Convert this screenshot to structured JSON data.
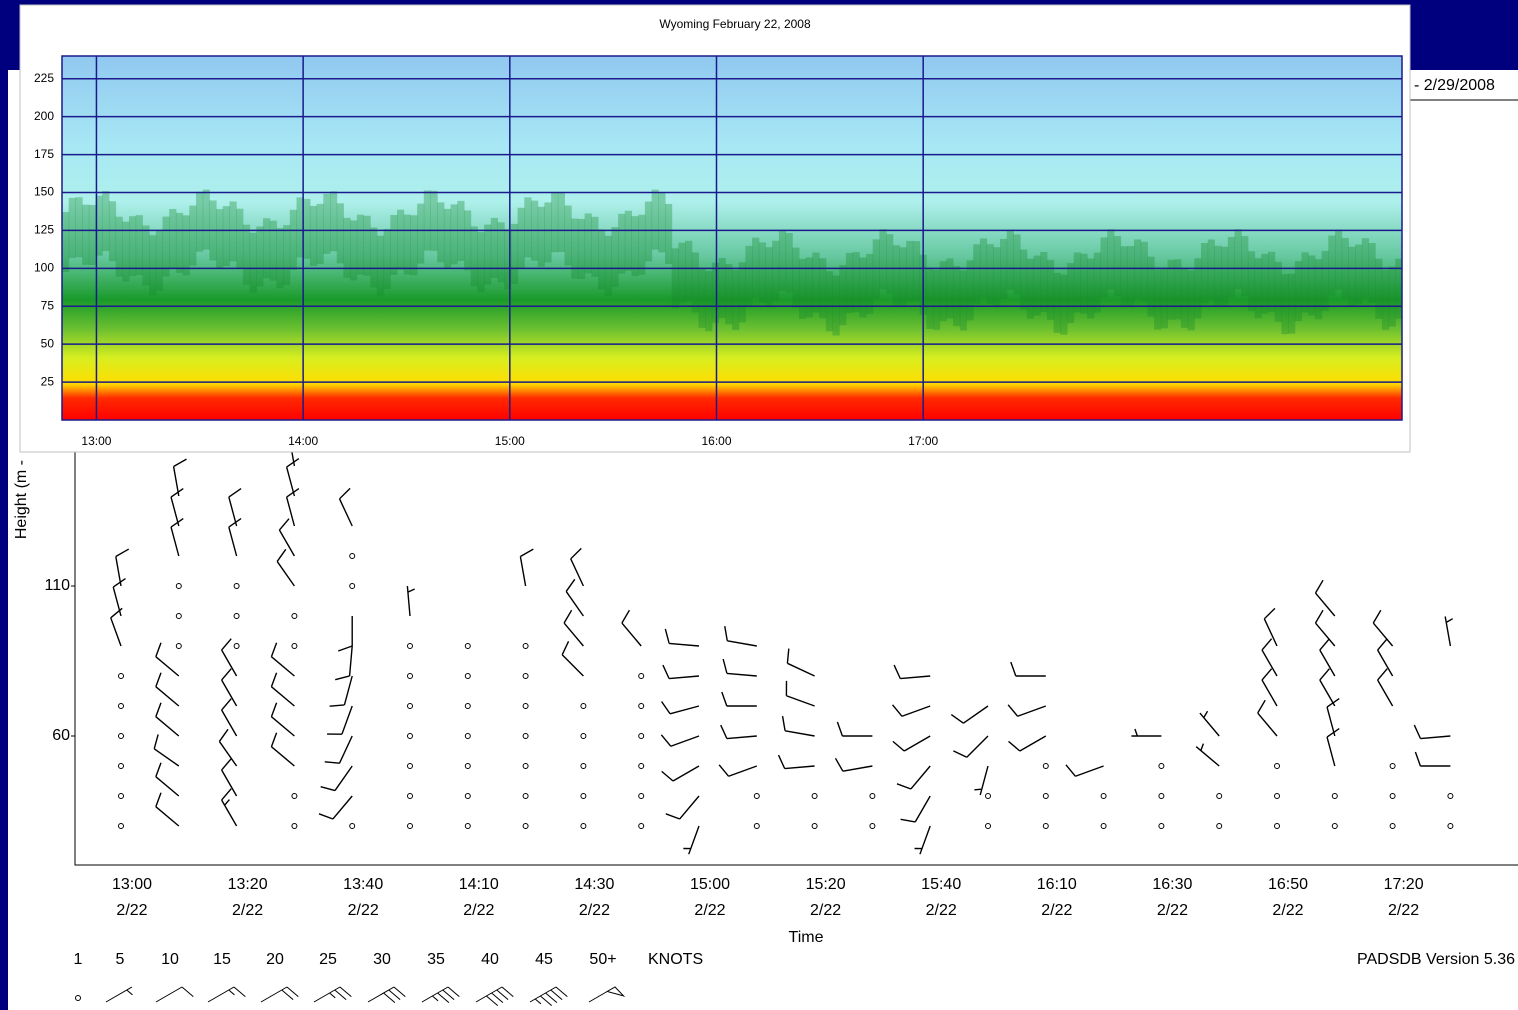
{
  "chart_data": [
    {
      "type": "heatmap",
      "title": "Wyoming February 22, 2008",
      "xlim": [
        770,
        1159
      ],
      "xticks": [
        {
          "value": 780,
          "label": "13:00"
        },
        {
          "value": 840,
          "label": "14:00"
        },
        {
          "value": 900,
          "label": "15:00"
        },
        {
          "value": 960,
          "label": "16:00"
        },
        {
          "value": 1020,
          "label": "17:00"
        }
      ],
      "ylim": [
        0,
        240
      ],
      "yticks": [
        25,
        50,
        75,
        100,
        125,
        150,
        175,
        200,
        225
      ],
      "grid": true,
      "grid_color": "#1a1a8c"
    },
    {
      "type": "barb",
      "x_label": "Time",
      "y_label": "Height (m -",
      "date_range_fragment": "- 2/29/2008",
      "footer": "PADSDB Version 5.36",
      "ylim": [
        17,
        272
      ],
      "yticks": [
        60,
        110
      ],
      "categories": [
        "13:00",
        null,
        "13:20",
        null,
        "13:40",
        null,
        "14:10",
        null,
        "14:30",
        null,
        "15:00",
        null,
        "15:20",
        null,
        "15:40",
        null,
        "16:10",
        null,
        "16:30",
        null,
        "16:50",
        null,
        "17:20",
        null
      ],
      "category_dates": [
        "2/22",
        null,
        "2/22",
        null,
        "2/22",
        null,
        "2/22",
        null,
        "2/22",
        null,
        "2/22",
        null,
        "2/22",
        null,
        "2/22",
        null,
        "2/22",
        null,
        "2/22",
        null,
        "2/22",
        null,
        "2/22",
        null
      ],
      "levels": [
        30,
        40,
        50,
        60,
        70,
        80,
        90,
        100,
        110,
        120,
        130,
        140,
        150
      ],
      "color": "#000000",
      "columns": [
        {
          "speeds": [
            0,
            0,
            0,
            0,
            0,
            0,
            10,
            10,
            10,
            null,
            null,
            null,
            null
          ],
          "directions": [
            null,
            null,
            null,
            null,
            null,
            null,
            340,
            345,
            350,
            null,
            null,
            null,
            null
          ]
        },
        {
          "speeds": [
            10,
            10,
            10,
            10,
            10,
            10,
            0,
            0,
            0,
            10,
            10,
            10,
            null
          ],
          "directions": [
            310,
            310,
            305,
            310,
            310,
            310,
            null,
            null,
            null,
            345,
            345,
            350,
            null
          ]
        },
        {
          "speeds": [
            15,
            10,
            10,
            10,
            10,
            10,
            0,
            0,
            0,
            10,
            10,
            null,
            null
          ],
          "directions": [
            330,
            330,
            325,
            330,
            330,
            330,
            null,
            null,
            null,
            345,
            345,
            null,
            null
          ]
        },
        {
          "speeds": [
            0,
            0,
            10,
            10,
            10,
            10,
            0,
            0,
            10,
            10,
            10,
            10,
            10
          ],
          "directions": [
            null,
            null,
            310,
            310,
            310,
            310,
            null,
            null,
            325,
            330,
            345,
            345,
            350
          ]
        },
        {
          "speeds": [
            0,
            10,
            10,
            10,
            10,
            10,
            10,
            10,
            0,
            0,
            10,
            null,
            null
          ],
          "directions": [
            null,
            220,
            215,
            205,
            200,
            195,
            185,
            180,
            null,
            null,
            335,
            null,
            null
          ]
        },
        {
          "speeds": [
            0,
            0,
            0,
            0,
            0,
            0,
            0,
            5,
            null,
            null,
            null,
            null,
            null
          ],
          "directions": [
            null,
            null,
            null,
            null,
            null,
            null,
            null,
            355,
            null,
            null,
            null,
            null,
            null
          ]
        },
        {
          "speeds": [
            0,
            0,
            0,
            0,
            0,
            0,
            0,
            null,
            null,
            null,
            null,
            null,
            null
          ],
          "directions": [
            null,
            null,
            null,
            null,
            null,
            null,
            null,
            null,
            null,
            null,
            null,
            null,
            null
          ]
        },
        {
          "speeds": [
            0,
            0,
            0,
            0,
            0,
            0,
            0,
            null,
            10,
            null,
            null,
            null,
            null
          ],
          "directions": [
            null,
            null,
            null,
            null,
            null,
            null,
            null,
            null,
            350,
            null,
            null,
            null,
            null
          ]
        },
        {
          "speeds": [
            0,
            0,
            0,
            0,
            0,
            10,
            10,
            10,
            10,
            null,
            null,
            null,
            null
          ],
          "directions": [
            null,
            null,
            null,
            null,
            null,
            315,
            320,
            325,
            335,
            null,
            null,
            null,
            null
          ]
        },
        {
          "speeds": [
            0,
            0,
            0,
            0,
            0,
            0,
            10,
            null,
            null,
            null,
            null,
            null,
            null
          ],
          "directions": [
            null,
            null,
            null,
            null,
            null,
            null,
            320,
            null,
            null,
            null,
            null,
            null,
            null
          ]
        },
        {
          "speeds": [
            5,
            10,
            10,
            10,
            10,
            10,
            10,
            null,
            null,
            null,
            null,
            null,
            null
          ],
          "directions": [
            200,
            220,
            240,
            250,
            255,
            265,
            275,
            null,
            null,
            null,
            null,
            null,
            null
          ]
        },
        {
          "speeds": [
            0,
            0,
            10,
            10,
            10,
            10,
            10,
            null,
            null,
            null,
            null,
            null,
            null
          ],
          "directions": [
            null,
            null,
            250,
            265,
            270,
            275,
            280,
            null,
            null,
            null,
            null,
            null,
            null
          ]
        },
        {
          "speeds": [
            0,
            0,
            10,
            10,
            10,
            10,
            null,
            null,
            null,
            null,
            null,
            null,
            null
          ],
          "directions": [
            null,
            null,
            265,
            280,
            290,
            295,
            null,
            null,
            null,
            null,
            null,
            null,
            null
          ]
        },
        {
          "speeds": [
            0,
            0,
            10,
            10,
            null,
            null,
            null,
            null,
            null,
            null,
            null,
            null,
            null
          ],
          "directions": [
            null,
            null,
            260,
            270,
            null,
            null,
            null,
            null,
            null,
            null,
            null,
            null,
            null
          ]
        },
        {
          "speeds": [
            5,
            10,
            10,
            10,
            10,
            10,
            null,
            null,
            null,
            null,
            null,
            null,
            null
          ],
          "directions": [
            200,
            210,
            220,
            240,
            250,
            265,
            null,
            null,
            null,
            null,
            null,
            null,
            null
          ]
        },
        {
          "speeds": [
            0,
            0,
            5,
            10,
            10,
            null,
            null,
            null,
            null,
            null,
            null,
            null,
            null
          ],
          "directions": [
            null,
            null,
            195,
            225,
            235,
            null,
            null,
            null,
            null,
            null,
            null,
            null,
            null
          ]
        },
        {
          "speeds": [
            0,
            0,
            0,
            10,
            10,
            10,
            null,
            null,
            null,
            null,
            null,
            null,
            null
          ],
          "directions": [
            null,
            null,
            null,
            240,
            250,
            270,
            null,
            null,
            null,
            null,
            null,
            null,
            null
          ]
        },
        {
          "speeds": [
            0,
            0,
            10,
            null,
            null,
            null,
            null,
            null,
            null,
            null,
            null,
            null,
            null
          ],
          "directions": [
            null,
            null,
            250,
            null,
            null,
            null,
            null,
            null,
            null,
            null,
            null,
            null,
            null
          ]
        },
        {
          "speeds": [
            0,
            0,
            0,
            5,
            null,
            null,
            null,
            null,
            null,
            null,
            null,
            null,
            null
          ],
          "directions": [
            null,
            null,
            null,
            270,
            null,
            null,
            null,
            null,
            null,
            null,
            null,
            null,
            null
          ]
        },
        {
          "speeds": [
            0,
            0,
            5,
            5,
            null,
            null,
            null,
            null,
            null,
            null,
            null,
            null,
            null
          ],
          "directions": [
            null,
            null,
            310,
            320,
            null,
            null,
            null,
            null,
            null,
            null,
            null,
            null,
            null
          ]
        },
        {
          "speeds": [
            0,
            0,
            0,
            10,
            10,
            10,
            10,
            null,
            null,
            null,
            null,
            null,
            null
          ],
          "directions": [
            null,
            null,
            null,
            320,
            330,
            330,
            335,
            null,
            null,
            null,
            null,
            null,
            null
          ]
        },
        {
          "speeds": [
            0,
            0,
            10,
            10,
            10,
            10,
            10,
            10,
            null,
            null,
            null,
            null,
            null
          ],
          "directions": [
            null,
            null,
            345,
            345,
            330,
            330,
            320,
            320,
            null,
            null,
            null,
            null,
            null
          ]
        },
        {
          "speeds": [
            0,
            0,
            0,
            null,
            10,
            10,
            10,
            null,
            null,
            null,
            null,
            null,
            null
          ],
          "directions": [
            null,
            null,
            null,
            null,
            330,
            330,
            320,
            null,
            null,
            null,
            null,
            null,
            null
          ]
        },
        {
          "speeds": [
            0,
            0,
            10,
            10,
            null,
            null,
            5,
            null,
            null,
            null,
            null,
            null,
            null
          ],
          "directions": [
            null,
            null,
            270,
            265,
            null,
            null,
            350,
            null,
            null,
            null,
            null,
            null,
            null
          ]
        }
      ],
      "legend": {
        "speeds": [
          1,
          5,
          10,
          15,
          20,
          25,
          30,
          35,
          40,
          45,
          {
            "value": 50,
            "label": "50+"
          }
        ],
        "unit": "KNOTS"
      }
    }
  ]
}
